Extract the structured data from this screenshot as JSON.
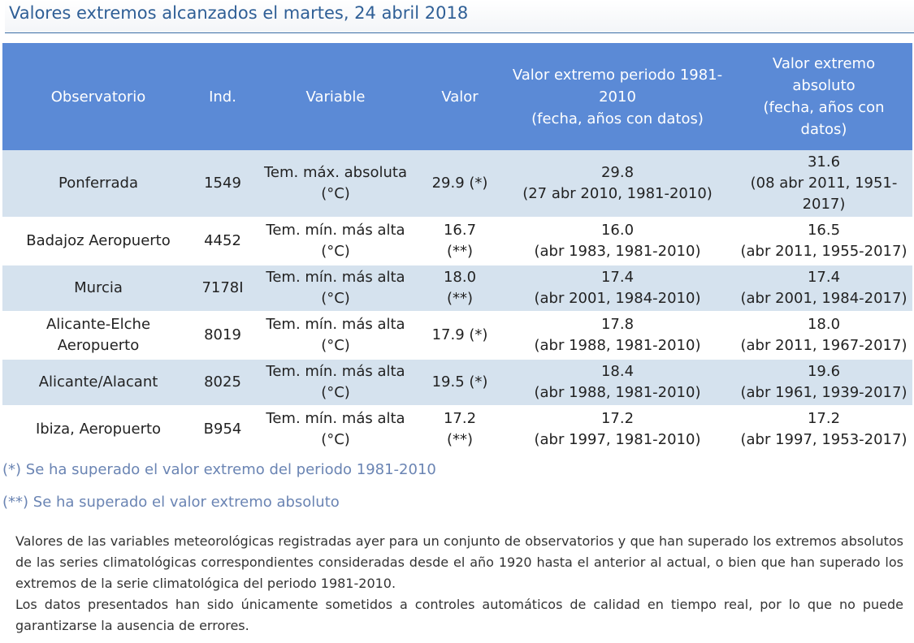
{
  "header": {
    "title": "Valores extremos alcanzados el martes, 24 abril 2018"
  },
  "table": {
    "columns": [
      "Observatorio",
      "Ind.",
      "Variable",
      "Valor",
      "Valor extremo periodo 1981-\n2010\n(fecha, años con datos)",
      "Valor extremo\nabsoluto\n(fecha, años con\ndatos)"
    ],
    "rows": [
      {
        "observatorio": "Ponferrada",
        "ind": "1549",
        "variable": "Tem. máx. absoluta\n(°C)",
        "valor": "29.9 (*)",
        "extremo_periodo": "29.8\n(27 abr 2010, 1981-2010)",
        "extremo_absoluto": "31.6\n(08 abr 2011, 1951-\n2017)"
      },
      {
        "observatorio": "Badajoz Aeropuerto",
        "ind": "4452",
        "variable": "Tem. mín. más alta\n(°C)",
        "valor": "16.7\n(**)",
        "extremo_periodo": "16.0\n(abr 1983, 1981-2010)",
        "extremo_absoluto": "16.5\n(abr 2011, 1955-2017)"
      },
      {
        "observatorio": "Murcia",
        "ind": "7178I",
        "variable": "Tem. mín. más alta\n(°C)",
        "valor": "18.0\n(**)",
        "extremo_periodo": "17.4\n(abr 2001, 1984-2010)",
        "extremo_absoluto": "17.4\n(abr 2001, 1984-2017)"
      },
      {
        "observatorio": "Alicante-Elche\nAeropuerto",
        "ind": "8019",
        "variable": "Tem. mín. más alta\n(°C)",
        "valor": "17.9 (*)",
        "extremo_periodo": "17.8\n(abr 1988, 1981-2010)",
        "extremo_absoluto": "18.0\n(abr 2011, 1967-2017)"
      },
      {
        "observatorio": "Alicante/Alacant",
        "ind": "8025",
        "variable": "Tem. mín. más alta\n(°C)",
        "valor": "19.5 (*)",
        "extremo_periodo": "18.4\n(abr 1988, 1981-2010)",
        "extremo_absoluto": "19.6\n(abr 1961, 1939-2017)"
      },
      {
        "observatorio": "Ibiza, Aeropuerto",
        "ind": "B954",
        "variable": "Tem. mín. más alta\n(°C)",
        "valor": "17.2\n(**)",
        "extremo_periodo": "17.2\n(abr 1997, 1981-2010)",
        "extremo_absoluto": "17.2\n(abr 1997, 1953-2017)"
      }
    ]
  },
  "notes": [
    "(*) Se ha superado el valor extremo del periodo 1981-2010",
    "(**) Se ha superado el valor extremo absoluto"
  ],
  "description": [
    "Valores de las variables meteorológicas registradas ayer para un conjunto de observatorios y que han superado los extremos absolutos de las series climatológicas correspondientes consideradas desde el año 1920 hasta el anterior al actual, o bien que han superado los extremos de la serie climatológica del periodo 1981-2010.",
    "Los datos presentados han sido únicamente sometidos a controles automáticos de calidad en tiempo real, por lo que no puede garantizarse la ausencia de errores."
  ],
  "colors": {
    "header_bg": "#5b8ad6",
    "row_alt_bg": "#d5e2ee",
    "title_color": "#2f5f96",
    "note_color": "#6a84b3"
  }
}
